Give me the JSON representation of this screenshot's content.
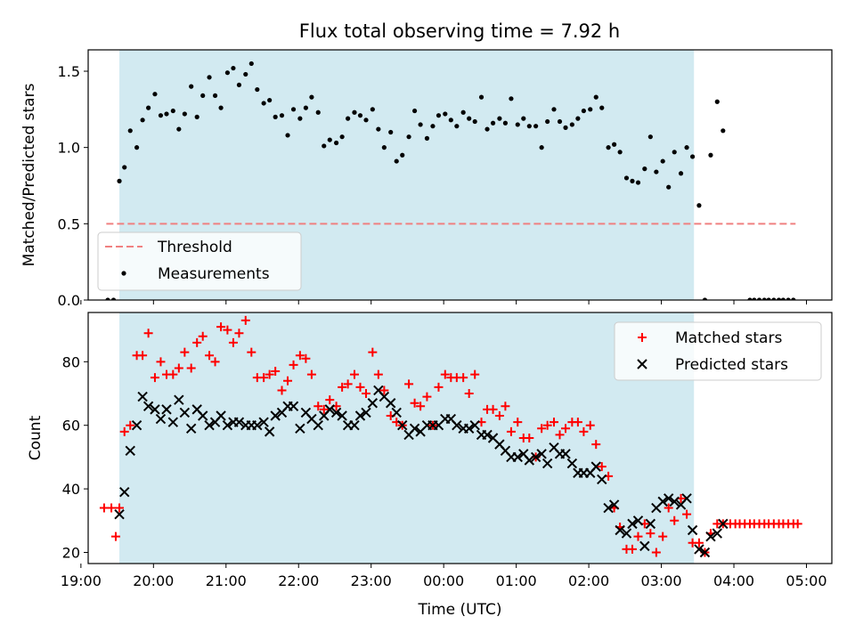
{
  "title": "Flux total observing time = 7.92 h",
  "colors": {
    "shade": "#add8e6",
    "threshold": "#f08080",
    "matched": "#ff0000",
    "predicted": "#000000",
    "measurements": "#000000"
  },
  "chart_data": [
    {
      "type": "scatter",
      "ylabel": "Matched/Predicted stars",
      "xlim": [
        19.1,
        29.35
      ],
      "ylim": [
        0,
        1.64
      ],
      "yticks": [
        0.0,
        0.5,
        1.0,
        1.5
      ],
      "ytick_labels": [
        "0.0",
        "0.5",
        "1.0",
        "1.5"
      ],
      "shaded_interval": [
        19.53,
        27.45
      ],
      "legend": {
        "position": "lower-left",
        "entries": [
          "Threshold",
          "Measurements"
        ]
      },
      "threshold": {
        "name": "Threshold",
        "value": 0.5,
        "x_range": [
          19.35,
          28.85
        ],
        "style": "dashed"
      },
      "series": [
        {
          "name": "Measurements",
          "marker": "dot",
          "x": [
            19.37,
            19.45,
            19.53,
            19.6,
            19.68,
            19.77,
            19.85,
            19.93,
            20.02,
            20.1,
            20.18,
            20.27,
            20.35,
            20.43,
            20.52,
            20.6,
            20.68,
            20.77,
            20.85,
            20.93,
            21.02,
            21.1,
            21.18,
            21.27,
            21.35,
            21.43,
            21.52,
            21.6,
            21.68,
            21.77,
            21.85,
            21.93,
            22.02,
            22.1,
            22.18,
            22.27,
            22.35,
            22.43,
            22.52,
            22.6,
            22.68,
            22.77,
            22.85,
            22.93,
            23.02,
            23.1,
            23.18,
            23.27,
            23.35,
            23.43,
            23.52,
            23.6,
            23.68,
            23.77,
            23.85,
            23.93,
            24.02,
            24.1,
            24.18,
            24.27,
            24.35,
            24.43,
            24.52,
            24.6,
            24.68,
            24.77,
            24.85,
            24.93,
            25.02,
            25.1,
            25.18,
            25.27,
            25.35,
            25.43,
            25.52,
            25.6,
            25.68,
            25.77,
            25.85,
            25.93,
            26.02,
            26.1,
            26.18,
            26.27,
            26.35,
            26.43,
            26.52,
            26.6,
            26.68,
            26.77,
            26.85,
            26.93,
            27.02,
            27.1,
            27.18,
            27.27,
            27.35,
            27.43,
            27.52,
            27.6,
            27.68,
            27.77,
            27.85,
            28.22,
            28.28,
            28.35,
            28.42,
            28.48,
            28.55,
            28.62,
            28.68,
            28.75,
            28.82
          ],
          "y": [
            0.0,
            0.0,
            0.78,
            0.87,
            1.11,
            1.0,
            1.18,
            1.26,
            1.35,
            1.21,
            1.22,
            1.24,
            1.12,
            1.22,
            1.4,
            1.2,
            1.34,
            1.46,
            1.34,
            1.26,
            1.49,
            1.52,
            1.41,
            1.48,
            1.55,
            1.38,
            1.29,
            1.31,
            1.2,
            1.21,
            1.08,
            1.25,
            1.19,
            1.26,
            1.33,
            1.23,
            1.01,
            1.05,
            1.03,
            1.07,
            1.19,
            1.23,
            1.21,
            1.18,
            1.25,
            1.12,
            1.0,
            1.1,
            0.91,
            0.95,
            1.07,
            1.24,
            1.15,
            1.06,
            1.14,
            1.21,
            1.22,
            1.18,
            1.14,
            1.23,
            1.19,
            1.17,
            1.33,
            1.12,
            1.16,
            1.19,
            1.16,
            1.32,
            1.15,
            1.19,
            1.14,
            1.14,
            1.0,
            1.17,
            1.25,
            1.17,
            1.13,
            1.15,
            1.19,
            1.24,
            1.25,
            1.33,
            1.26,
            1.0,
            1.02,
            0.97,
            0.8,
            0.78,
            0.77,
            0.86,
            1.07,
            0.84,
            0.91,
            0.74,
            0.97,
            0.83,
            1.0,
            0.94,
            0.62,
            0.0,
            0.95,
            1.3,
            1.11,
            0.0,
            0.0,
            0.0,
            0.0,
            0.0,
            0.0,
            0.0,
            0.0,
            0.0,
            0.0
          ]
        }
      ]
    },
    {
      "type": "scatter",
      "ylabel": "Count",
      "xlabel": "Time (UTC)",
      "xlim": [
        19.1,
        29.35
      ],
      "ylim": [
        16.5,
        95.5
      ],
      "yticks": [
        20,
        40,
        60,
        80
      ],
      "ytick_labels": [
        "20",
        "40",
        "60",
        "80"
      ],
      "xticks": [
        19,
        20,
        21,
        22,
        23,
        24,
        25,
        26,
        27,
        28,
        29
      ],
      "xtick_labels": [
        "19:00",
        "20:00",
        "21:00",
        "22:00",
        "23:00",
        "00:00",
        "01:00",
        "02:00",
        "03:00",
        "04:00",
        "05:00"
      ],
      "shaded_interval": [
        19.53,
        27.45
      ],
      "legend": {
        "position": "top-right",
        "entries": [
          "Matched stars",
          "Predicted stars"
        ]
      },
      "series": [
        {
          "name": "Matched stars",
          "marker": "plus",
          "x": [
            19.32,
            19.42,
            19.48,
            19.53,
            19.6,
            19.68,
            19.77,
            19.85,
            19.93,
            20.02,
            20.1,
            20.18,
            20.27,
            20.35,
            20.43,
            20.52,
            20.6,
            20.68,
            20.77,
            20.85,
            20.93,
            21.02,
            21.1,
            21.18,
            21.27,
            21.35,
            21.43,
            21.52,
            21.6,
            21.68,
            21.77,
            21.85,
            21.93,
            22.02,
            22.1,
            22.18,
            22.27,
            22.35,
            22.43,
            22.52,
            22.6,
            22.68,
            22.77,
            22.85,
            22.93,
            23.02,
            23.1,
            23.18,
            23.27,
            23.35,
            23.43,
            23.52,
            23.6,
            23.68,
            23.77,
            23.85,
            23.93,
            24.02,
            24.1,
            24.18,
            24.27,
            24.35,
            24.43,
            24.52,
            24.6,
            24.68,
            24.77,
            24.85,
            24.93,
            25.02,
            25.1,
            25.18,
            25.27,
            25.35,
            25.43,
            25.52,
            25.6,
            25.68,
            25.77,
            25.85,
            25.93,
            26.02,
            26.1,
            26.18,
            26.27,
            26.35,
            26.43,
            26.52,
            26.6,
            26.68,
            26.77,
            26.85,
            26.93,
            27.02,
            27.1,
            27.18,
            27.27,
            27.35,
            27.43,
            27.52,
            27.6,
            27.68,
            27.77,
            27.85,
            27.95,
            28.02,
            28.08,
            28.15,
            28.22,
            28.28,
            28.35,
            28.42,
            28.48,
            28.55,
            28.62,
            28.68,
            28.75,
            28.82,
            28.88
          ],
          "y": [
            34,
            34,
            25,
            34,
            58,
            60,
            82,
            82,
            89,
            75,
            80,
            76,
            76,
            78,
            83,
            78,
            86,
            88,
            82,
            80,
            91,
            90,
            86,
            89,
            93,
            83,
            75,
            75,
            76,
            77,
            71,
            74,
            79,
            82,
            81,
            76,
            66,
            65,
            68,
            66,
            72,
            73,
            76,
            72,
            70,
            83,
            76,
            71,
            63,
            61,
            60,
            73,
            67,
            66,
            69,
            60,
            72,
            76,
            75,
            75,
            75,
            70,
            76,
            61,
            65,
            65,
            63,
            66,
            58,
            61,
            56,
            56,
            50,
            59,
            60,
            61,
            57,
            59,
            61,
            61,
            58,
            60,
            54,
            47,
            44,
            34,
            28,
            21,
            21,
            25,
            29,
            26,
            20,
            25,
            34,
            30,
            37,
            32,
            23,
            23,
            20,
            26,
            29,
            29,
            29,
            29,
            29,
            29,
            29,
            29,
            29,
            29,
            29,
            29,
            29,
            29,
            29,
            29,
            29
          ]
        },
        {
          "name": "Predicted stars",
          "marker": "x",
          "x": [
            19.53,
            19.6,
            19.68,
            19.77,
            19.85,
            19.93,
            20.02,
            20.1,
            20.18,
            20.27,
            20.35,
            20.43,
            20.52,
            20.6,
            20.68,
            20.77,
            20.85,
            20.93,
            21.02,
            21.1,
            21.18,
            21.27,
            21.35,
            21.43,
            21.52,
            21.6,
            21.68,
            21.77,
            21.85,
            21.93,
            22.02,
            22.1,
            22.18,
            22.27,
            22.35,
            22.43,
            22.52,
            22.6,
            22.68,
            22.77,
            22.85,
            22.93,
            23.02,
            23.1,
            23.18,
            23.27,
            23.35,
            23.43,
            23.52,
            23.6,
            23.68,
            23.77,
            23.85,
            23.93,
            24.02,
            24.1,
            24.18,
            24.27,
            24.35,
            24.43,
            24.52,
            24.6,
            24.68,
            24.77,
            24.85,
            24.93,
            25.02,
            25.1,
            25.18,
            25.27,
            25.35,
            25.43,
            25.52,
            25.6,
            25.68,
            25.77,
            25.85,
            25.93,
            26.02,
            26.1,
            26.18,
            26.27,
            26.35,
            26.43,
            26.52,
            26.6,
            26.68,
            26.77,
            26.85,
            26.93,
            27.02,
            27.1,
            27.18,
            27.27,
            27.35,
            27.43,
            27.52,
            27.6,
            27.68,
            27.77,
            27.85
          ],
          "y": [
            32,
            39,
            52,
            60,
            69,
            66,
            65,
            62,
            65,
            61,
            68,
            64,
            59,
            65,
            63,
            60,
            61,
            63,
            60,
            61,
            61,
            60,
            60,
            60,
            61,
            58,
            63,
            64,
            66,
            66,
            59,
            64,
            62,
            60,
            63,
            65,
            64,
            63,
            60,
            60,
            63,
            64,
            67,
            71,
            69,
            67,
            64,
            60,
            57,
            59,
            58,
            60,
            60,
            60,
            62,
            62,
            60,
            59,
            59,
            60,
            57,
            57,
            56,
            54,
            52,
            50,
            50,
            51,
            49,
            50,
            51,
            48,
            53,
            51,
            51,
            48,
            45,
            45,
            45,
            47,
            43,
            34,
            35,
            27,
            26,
            29,
            30,
            22,
            29,
            34,
            36,
            37,
            36,
            35,
            37,
            27,
            21,
            20,
            25,
            26,
            29
          ]
        }
      ]
    }
  ]
}
